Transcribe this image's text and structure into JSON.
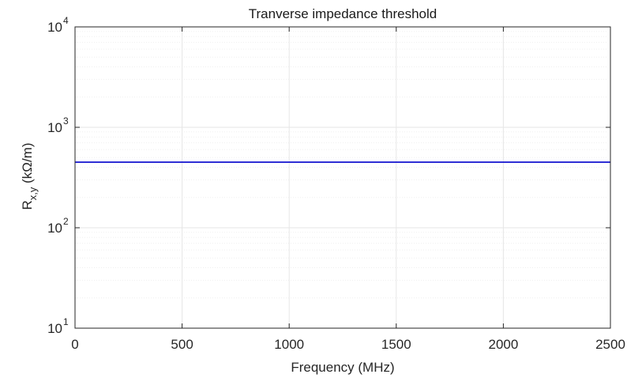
{
  "chart_data": {
    "type": "line",
    "title": "Tranverse impedance threshold",
    "xlabel": "Frequency (MHz)",
    "ylabel": {
      "main": "R",
      "subscript": "x,y",
      "unit": " (kΩ/m)"
    },
    "xlim": [
      0,
      2500
    ],
    "ylim": [
      10,
      10000
    ],
    "yscale": "log",
    "x_ticks": [
      0,
      500,
      1000,
      1500,
      2000,
      2500
    ],
    "y_ticks": [
      {
        "base": "10",
        "exp": "1",
        "value": 10
      },
      {
        "base": "10",
        "exp": "2",
        "value": 100
      },
      {
        "base": "10",
        "exp": "3",
        "value": 1000
      },
      {
        "base": "10",
        "exp": "4",
        "value": 10000
      }
    ],
    "grid": true,
    "minor_grid": true,
    "series": [
      {
        "color": "#0000cc",
        "x": [
          0,
          2500
        ],
        "y": [
          450,
          450
        ]
      }
    ]
  },
  "colors": {
    "axis": "#262626",
    "grid": "#e6e6e6",
    "minor_grid": "#efefef",
    "line": "#0000cc"
  }
}
